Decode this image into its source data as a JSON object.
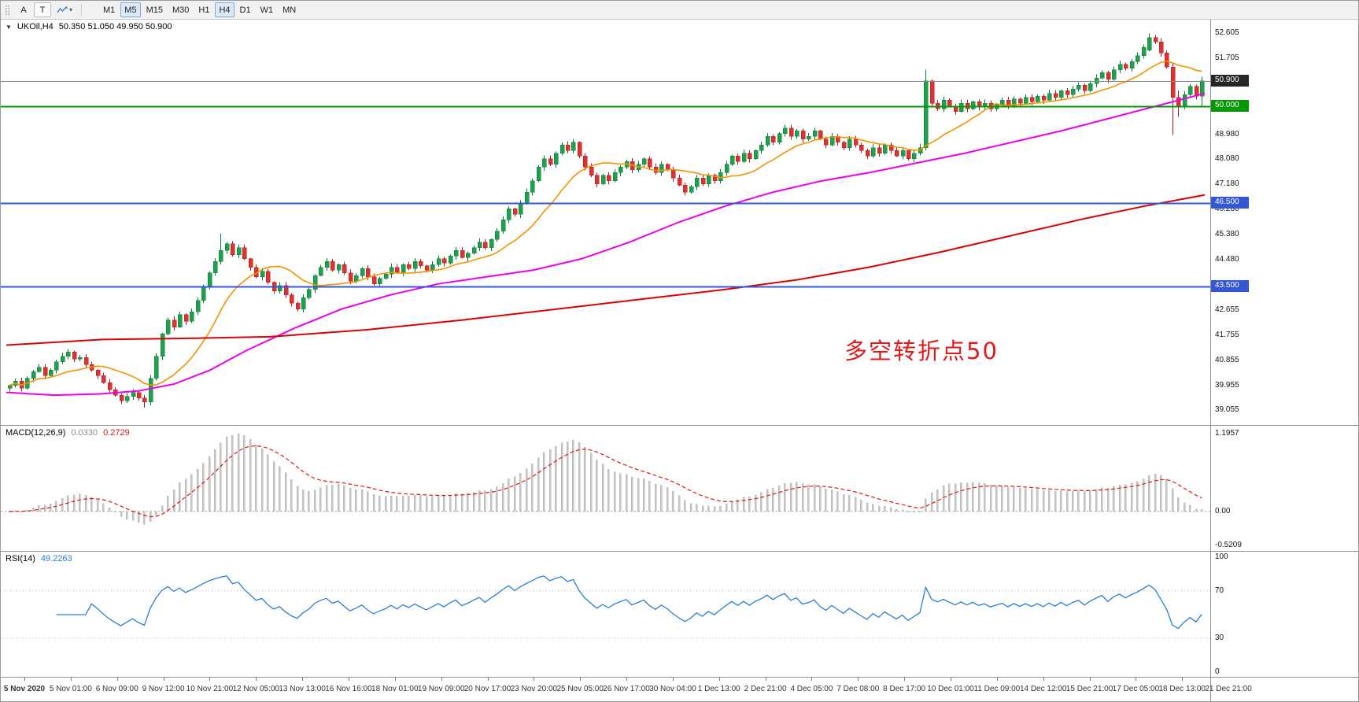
{
  "window_title": "UKOil H4 chart",
  "toolbar": {
    "tools": [
      {
        "label": "A",
        "name": "text-label-tool"
      },
      {
        "label": "T",
        "name": "text-tool"
      }
    ],
    "timeframes": [
      {
        "label": "M1",
        "active": false
      },
      {
        "label": "M5",
        "active": true
      },
      {
        "label": "M15",
        "active": false
      },
      {
        "label": "M30",
        "active": false
      },
      {
        "label": "H1",
        "active": false
      },
      {
        "label": "H4",
        "active": true
      },
      {
        "label": "D1",
        "active": false
      },
      {
        "label": "W1",
        "active": false
      },
      {
        "label": "MN",
        "active": false
      }
    ]
  },
  "main_chart": {
    "symbol_period": "UKOil,H4",
    "ohlc_text": "50.350 51.050 49.950 50.900",
    "annotation": {
      "text": "多空转折点50",
      "color": "#e81717"
    },
    "axis_ticks": [
      "52.605",
      "51.705",
      "48.980",
      "48.080",
      "47.180",
      "46.280",
      "45.380",
      "44.480",
      "42.655",
      "41.755",
      "40.855",
      "39.955",
      "39.055"
    ],
    "badges": [
      {
        "value": "50.900",
        "price": 50.9,
        "bg": "#262626",
        "type": "last-price"
      },
      {
        "value": "50.000",
        "price": 50.0,
        "bg": "#009a00",
        "type": "level"
      },
      {
        "value": "46.500",
        "price": 46.5,
        "bg": "#3457d5",
        "type": "level"
      },
      {
        "value": "43.500",
        "price": 43.5,
        "bg": "#3457d5",
        "type": "level"
      }
    ]
  },
  "indicators": {
    "macd": {
      "label": "MACD(12,26,9)",
      "value_main": "0.0330",
      "value_signal": "0.2729",
      "axis": [
        {
          "text": "1.1957",
          "value": 1.1957
        },
        {
          "text": "0.00",
          "value": 0.0
        },
        {
          "text": "-0.5209",
          "value": -0.5209
        }
      ]
    },
    "rsi": {
      "label": "RSI(14)",
      "value": "49.2263",
      "axis": [
        {
          "text": "100",
          "value": 100
        },
        {
          "text": "70",
          "value": 70
        },
        {
          "text": "30",
          "value": 30
        },
        {
          "text": "0",
          "value": 0
        }
      ],
      "level_lines": [
        70,
        30
      ]
    }
  },
  "time_axis": {
    "labels": [
      "5 Nov 2020",
      "5 Nov 01:00",
      "6 Nov 09:00",
      "9 Nov 12:00",
      "10 Nov 21:00",
      "12 Nov 05:00",
      "13 Nov 13:00",
      "16 Nov 16:00",
      "18 Nov 01:00",
      "19 Nov 09:00",
      "20 Nov 17:00",
      "23 Nov 20:00",
      "25 Nov 05:00",
      "26 Nov 17:00",
      "30 Nov 04:00",
      "1 Dec 13:00",
      "2 Dec 21:00",
      "4 Dec 05:00",
      "7 Dec 08:00",
      "8 Dec 17:00",
      "10 Dec 01:00",
      "11 Dec 09:00",
      "14 Dec 12:00",
      "15 Dec 21:00",
      "17 Dec 05:00",
      "18 Dec 13:00",
      "21 Dec 21:00"
    ]
  },
  "chart_data": {
    "type": "candlestick",
    "symbol": "UKOil",
    "period": "H4",
    "title": "UKOil,H4",
    "last_ohlc": {
      "open": 50.35,
      "high": 51.05,
      "low": 49.95,
      "close": 50.9
    },
    "price_range": [
      38.5,
      53.1
    ],
    "first_open": 39.85,
    "closes": [
      39.95,
      40.1,
      39.85,
      40.2,
      40.45,
      40.6,
      40.3,
      40.5,
      40.8,
      41.0,
      41.15,
      40.9,
      40.95,
      40.7,
      40.5,
      40.3,
      40.05,
      39.8,
      39.6,
      39.4,
      39.55,
      39.7,
      39.5,
      39.35,
      40.2,
      41.0,
      41.8,
      42.3,
      42.05,
      42.5,
      42.25,
      42.6,
      43.0,
      43.5,
      44.0,
      44.4,
      44.8,
      45.05,
      44.65,
      44.9,
      44.5,
      44.2,
      43.85,
      44.05,
      43.65,
      43.35,
      43.55,
      43.2,
      42.9,
      42.7,
      43.1,
      43.4,
      43.9,
      44.2,
      44.4,
      44.1,
      44.3,
      44.0,
      43.7,
      43.9,
      44.15,
      43.85,
      43.6,
      43.8,
      43.95,
      44.2,
      44.0,
      44.3,
      44.15,
      44.4,
      44.25,
      44.1,
      44.3,
      44.5,
      44.35,
      44.6,
      44.8,
      44.55,
      44.7,
      44.9,
      45.1,
      44.9,
      45.2,
      45.5,
      45.9,
      46.3,
      46.1,
      46.5,
      46.9,
      47.3,
      47.8,
      48.1,
      47.9,
      48.3,
      48.6,
      48.4,
      48.7,
      48.2,
      47.8,
      47.5,
      47.2,
      47.5,
      47.3,
      47.6,
      47.8,
      48.0,
      47.7,
      47.9,
      48.1,
      47.8,
      47.6,
      47.9,
      47.7,
      47.4,
      47.15,
      46.9,
      47.1,
      47.4,
      47.2,
      47.5,
      47.3,
      47.6,
      47.9,
      48.2,
      48.0,
      48.3,
      48.1,
      48.4,
      48.6,
      48.9,
      48.7,
      49.0,
      49.2,
      48.9,
      49.1,
      48.8,
      48.9,
      49.1,
      48.8,
      48.6,
      48.9,
      48.7,
      48.5,
      48.8,
      48.6,
      48.4,
      48.2,
      48.5,
      48.3,
      48.6,
      48.4,
      48.2,
      48.4,
      48.1,
      48.3,
      48.5,
      50.9,
      50.1,
      49.9,
      50.2,
      50.0,
      49.8,
      50.1,
      49.9,
      50.15,
      49.95,
      50.1,
      49.9,
      50.05,
      50.2,
      50.0,
      50.25,
      50.1,
      50.3,
      50.15,
      50.35,
      50.2,
      50.45,
      50.3,
      50.55,
      50.4,
      50.6,
      50.75,
      50.55,
      50.8,
      51.0,
      51.2,
      50.95,
      51.3,
      51.5,
      51.35,
      51.6,
      51.8,
      52.1,
      52.45,
      52.3,
      51.9,
      51.4,
      50.3,
      50.0,
      50.4,
      50.7,
      50.35,
      50.9
    ],
    "ohlc_overrides": {
      "23": [
        39.5,
        39.6,
        39.15,
        39.35
      ],
      "36": [
        44.4,
        45.4,
        44.3,
        44.8
      ],
      "156": [
        48.5,
        51.3,
        48.4,
        50.9
      ],
      "194": [
        52.0,
        52.605,
        51.95,
        52.45
      ],
      "198": [
        51.4,
        51.55,
        48.95,
        50.3
      ],
      "199": [
        50.3,
        50.55,
        49.6,
        50.0
      ],
      "203": [
        50.35,
        51.05,
        49.95,
        50.9
      ]
    },
    "horizontal_levels": [
      {
        "price": 50.9,
        "color": "#8a8a8a",
        "width": 1,
        "style": "last-price"
      },
      {
        "price": 50.0,
        "color": "#009a00",
        "width": 2,
        "style": "support-resistance"
      },
      {
        "price": 46.5,
        "color": "#3457d5",
        "width": 2,
        "style": "support-resistance"
      },
      {
        "price": 43.5,
        "color": "#3457d5",
        "width": 2,
        "style": "support-resistance"
      }
    ],
    "moving_averages": {
      "orange": {
        "type": "sma",
        "period": 13,
        "color": "#f59300"
      },
      "magenta": {
        "color": "#ee00ee",
        "anchors": [
          [
            0.0,
            39.7
          ],
          [
            0.04,
            39.6
          ],
          [
            0.08,
            39.65
          ],
          [
            0.11,
            39.75
          ],
          [
            0.14,
            40.0
          ],
          [
            0.17,
            40.5
          ],
          [
            0.2,
            41.2
          ],
          [
            0.24,
            42.0
          ],
          [
            0.28,
            42.7
          ],
          [
            0.32,
            43.2
          ],
          [
            0.36,
            43.6
          ],
          [
            0.4,
            43.85
          ],
          [
            0.44,
            44.1
          ],
          [
            0.48,
            44.5
          ],
          [
            0.52,
            45.1
          ],
          [
            0.56,
            45.8
          ],
          [
            0.6,
            46.4
          ],
          [
            0.64,
            46.9
          ],
          [
            0.68,
            47.3
          ],
          [
            0.72,
            47.6
          ],
          [
            0.76,
            47.95
          ],
          [
            0.8,
            48.3
          ],
          [
            0.84,
            48.7
          ],
          [
            0.88,
            49.1
          ],
          [
            0.92,
            49.55
          ],
          [
            0.96,
            50.0
          ],
          [
            1.0,
            50.45
          ]
        ]
      },
      "red": {
        "color": "#dd0000",
        "anchors": [
          [
            0.0,
            41.4
          ],
          [
            0.08,
            41.6
          ],
          [
            0.16,
            41.65
          ],
          [
            0.22,
            41.7
          ],
          [
            0.3,
            41.95
          ],
          [
            0.38,
            42.3
          ],
          [
            0.46,
            42.7
          ],
          [
            0.54,
            43.1
          ],
          [
            0.6,
            43.4
          ],
          [
            0.66,
            43.75
          ],
          [
            0.72,
            44.2
          ],
          [
            0.78,
            44.75
          ],
          [
            0.84,
            45.35
          ],
          [
            0.9,
            45.95
          ],
          [
            0.95,
            46.4
          ],
          [
            1.0,
            46.8
          ]
        ]
      }
    },
    "macd": {
      "fast": 12,
      "slow": 26,
      "signal": 9,
      "range": [
        -0.62,
        1.32
      ],
      "peak": 1.1957,
      "histogram_color": "#c8c8c8",
      "signal_color": "#e01818"
    },
    "rsi": {
      "period": 14,
      "range": [
        0,
        100
      ],
      "line_color": "#2a7fd4"
    },
    "candle_colors": {
      "up_fill": "#1ca24c",
      "up_stroke": "#0f7a36",
      "down_fill": "#e03030",
      "down_stroke": "#a52222"
    }
  }
}
